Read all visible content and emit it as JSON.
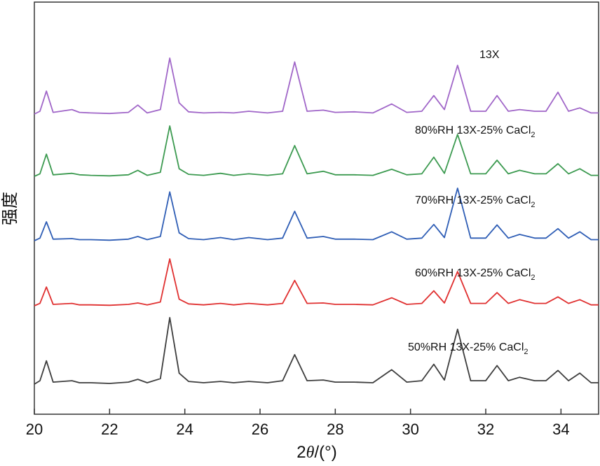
{
  "chart_data": {
    "type": "line",
    "xlabel_prefix": "2",
    "xlabel_theta": "θ",
    "xlabel_suffix": "/(°)",
    "ylabel": "强度",
    "xlim": [
      20,
      35
    ],
    "x_ticks": [
      "20",
      "22",
      "24",
      "26",
      "28",
      "30",
      "32",
      "34"
    ],
    "y_ticks_shown": false,
    "x": [
      20.0,
      20.15,
      20.32,
      20.5,
      21.0,
      21.2,
      21.5,
      22.0,
      22.5,
      22.75,
      23.0,
      23.35,
      23.6,
      23.85,
      24.1,
      24.5,
      24.95,
      25.3,
      25.7,
      26.2,
      26.6,
      26.92,
      27.25,
      27.68,
      28.0,
      28.5,
      29.0,
      29.5,
      29.9,
      30.3,
      30.62,
      30.9,
      31.25,
      31.6,
      32.0,
      32.3,
      32.6,
      32.9,
      33.3,
      33.6,
      33.92,
      34.2,
      34.5,
      34.8,
      35.0
    ],
    "series": [
      {
        "name": "13X",
        "color": "#a066c8",
        "values": [
          0.0,
          0.05,
          0.41,
          0.03,
          0.08,
          0.03,
          0.02,
          0.01,
          0.03,
          0.16,
          0.02,
          0.08,
          1.0,
          0.2,
          0.04,
          0.02,
          0.03,
          0.02,
          0.05,
          0.02,
          0.05,
          0.93,
          0.05,
          0.07,
          0.03,
          0.04,
          0.02,
          0.18,
          0.03,
          0.05,
          0.33,
          0.08,
          0.87,
          0.05,
          0.05,
          0.33,
          0.05,
          0.08,
          0.05,
          0.05,
          0.39,
          0.05,
          0.11,
          0.02,
          0.02
        ]
      },
      {
        "name": "80%RH 13X-25% CaCl",
        "sub": "2",
        "color": "#3c9a50",
        "values": [
          0.0,
          0.05,
          0.44,
          0.03,
          0.06,
          0.03,
          0.02,
          0.01,
          0.03,
          0.12,
          0.02,
          0.08,
          1.0,
          0.15,
          0.04,
          0.02,
          0.06,
          0.02,
          0.05,
          0.02,
          0.05,
          0.61,
          0.05,
          0.1,
          0.03,
          0.03,
          0.02,
          0.14,
          0.03,
          0.05,
          0.38,
          0.06,
          0.83,
          0.05,
          0.05,
          0.32,
          0.05,
          0.12,
          0.05,
          0.05,
          0.25,
          0.05,
          0.15,
          0.02,
          0.02
        ]
      },
      {
        "name": "70%RH 13X-25% CaCl",
        "sub": "2",
        "color": "#2e5db5",
        "values": [
          0.0,
          0.05,
          0.36,
          0.03,
          0.04,
          0.02,
          0.02,
          0.01,
          0.03,
          0.08,
          0.02,
          0.08,
          0.93,
          0.15,
          0.04,
          0.02,
          0.06,
          0.02,
          0.06,
          0.02,
          0.05,
          0.56,
          0.05,
          0.08,
          0.03,
          0.03,
          0.02,
          0.17,
          0.03,
          0.05,
          0.31,
          0.06,
          1.0,
          0.05,
          0.05,
          0.3,
          0.05,
          0.12,
          0.05,
          0.05,
          0.23,
          0.05,
          0.17,
          0.02,
          0.02
        ]
      },
      {
        "name": "60%RH 13X-25% CaCl",
        "sub": "2",
        "color": "#e03030",
        "values": [
          0.0,
          0.05,
          0.4,
          0.03,
          0.05,
          0.02,
          0.02,
          0.01,
          0.03,
          0.06,
          0.02,
          0.08,
          1.0,
          0.14,
          0.04,
          0.02,
          0.05,
          0.02,
          0.05,
          0.02,
          0.05,
          0.54,
          0.05,
          0.06,
          0.03,
          0.03,
          0.02,
          0.17,
          0.03,
          0.05,
          0.32,
          0.06,
          0.73,
          0.05,
          0.05,
          0.28,
          0.05,
          0.13,
          0.05,
          0.05,
          0.19,
          0.05,
          0.13,
          0.02,
          0.02
        ]
      },
      {
        "name": "50%RH 13X-25% CaCl",
        "sub": "2",
        "color": "#3d3d3d",
        "values": [
          0.0,
          0.05,
          0.34,
          0.03,
          0.05,
          0.02,
          0.02,
          0.01,
          0.03,
          0.07,
          0.02,
          0.08,
          0.97,
          0.16,
          0.04,
          0.02,
          0.04,
          0.02,
          0.04,
          0.02,
          0.05,
          0.43,
          0.05,
          0.06,
          0.03,
          0.03,
          0.02,
          0.21,
          0.03,
          0.05,
          0.29,
          0.06,
          0.8,
          0.05,
          0.05,
          0.27,
          0.05,
          0.1,
          0.05,
          0.05,
          0.2,
          0.05,
          0.16,
          0.02,
          0.02
        ]
      }
    ]
  }
}
